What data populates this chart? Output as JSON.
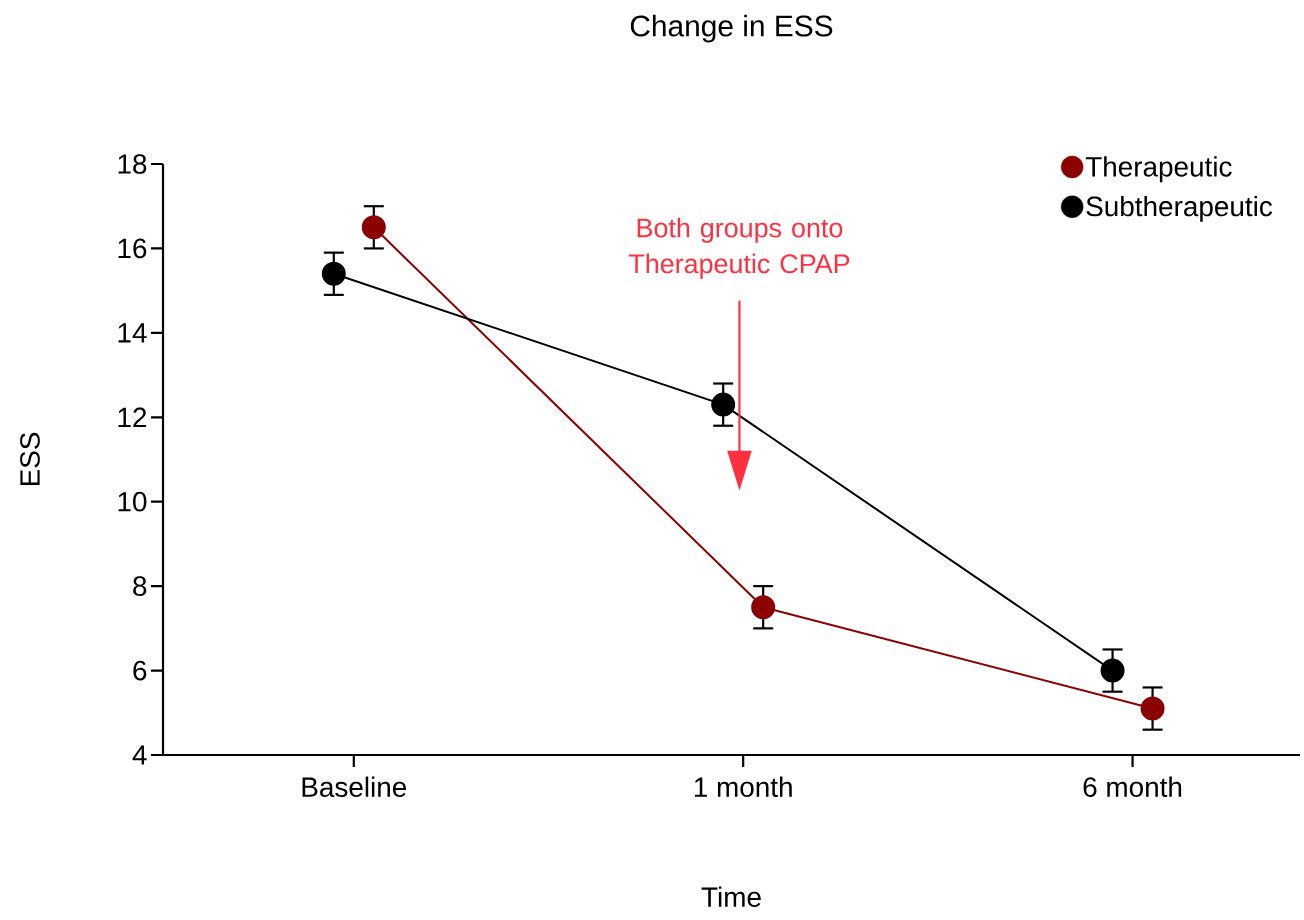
{
  "chart_data": {
    "type": "line",
    "title": "Change in ESS",
    "xlabel": "Time",
    "ylabel": "ESS",
    "categories": [
      "Baseline",
      "1 month",
      "6 month"
    ],
    "series": [
      {
        "name": "Therapeutic",
        "color": "#8b0000",
        "values": [
          16.5,
          7.5,
          5.1
        ],
        "errors": [
          0.5,
          0.5,
          0.5
        ]
      },
      {
        "name": "Subtherapeutic",
        "color": "#000000",
        "values": [
          15.4,
          12.3,
          6.0
        ],
        "errors": [
          0.5,
          0.5,
          0.5
        ]
      }
    ],
    "ylim": [
      4,
      18
    ],
    "yticks": [
      4,
      6,
      8,
      10,
      12,
      14,
      16,
      18
    ],
    "annotations": [
      "Both groups onto Therapeutic CPAP"
    ],
    "legend": "top right",
    "marker": "circle",
    "line_style": "solid"
  }
}
